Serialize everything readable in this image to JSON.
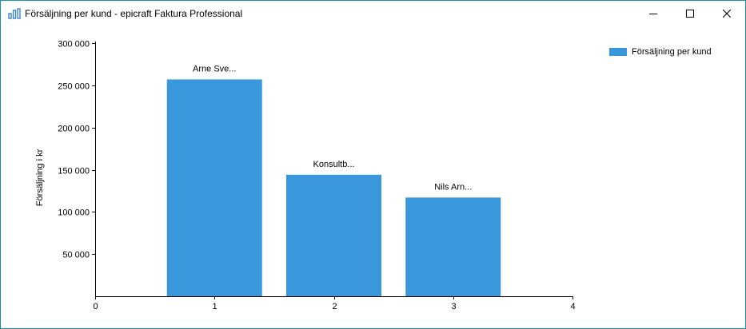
{
  "window": {
    "title": "Försäljning per kund - epicraft Faktura Professional",
    "app_icon": "bar-chart-icon",
    "buttons": {
      "minimize_icon": "minimize-icon",
      "maximize_icon": "maximize-icon",
      "close_icon": "close-icon"
    }
  },
  "legend": {
    "items": [
      {
        "label": "Försäljning per kund",
        "color": "#3898db"
      }
    ]
  },
  "chart_data": {
    "type": "bar",
    "title": "",
    "xlabel": "",
    "ylabel": "Försäljning i kr",
    "xlim": [
      0,
      4
    ],
    "ylim": [
      0,
      300000
    ],
    "x_ticks": [
      "0",
      "1",
      "2",
      "3",
      "4"
    ],
    "y_ticks": [
      {
        "value": 50000,
        "label": "50 000"
      },
      {
        "value": 100000,
        "label": "100 000"
      },
      {
        "value": 150000,
        "label": "150 000"
      },
      {
        "value": 200000,
        "label": "200 000"
      },
      {
        "value": 250000,
        "label": "250 000"
      },
      {
        "value": 300000,
        "label": "300 000"
      }
    ],
    "grid": false,
    "legend_position": "top-right",
    "series": [
      {
        "name": "Försäljning per kund",
        "color": "#3898db",
        "points": [
          {
            "x": 1,
            "value": 257000,
            "label": "Arne Sve..."
          },
          {
            "x": 2,
            "value": 144000,
            "label": "Konsultb..."
          },
          {
            "x": 3,
            "value": 117000,
            "label": "Nils Arn..."
          }
        ]
      }
    ]
  }
}
